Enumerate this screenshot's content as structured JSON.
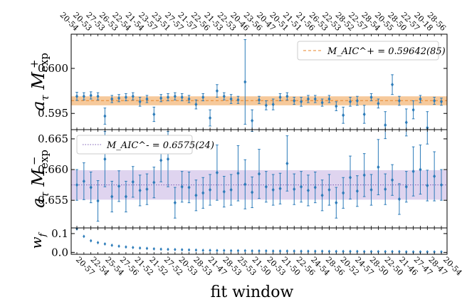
{
  "chart_data": [
    {
      "type": "scatter",
      "panel": "top",
      "ylabel_main": "a",
      "ylabel_sub": "τ",
      "ylabel_var": "M",
      "ylabel_varsub": "exp",
      "ylabel_varsup": "+",
      "yticks": [
        0.595,
        0.6
      ],
      "yticklabels": [
        "0.595",
        "0.600"
      ],
      "ylim": [
        0.5932,
        0.6038
      ],
      "top_tick_labels": [
        "20-54",
        "20-53",
        "27-53",
        "26-53",
        "22-54",
        "21-54",
        "23-57",
        "23-51",
        "27-57",
        "21-57",
        "22-56",
        "21-53",
        "22-53",
        "20-46",
        "23-56",
        "20-47",
        "20-51",
        "21-51",
        "21-56",
        "26-53",
        "22-53",
        "28-52",
        "22-57",
        "28-54",
        "20-55",
        "28-50",
        "22-57",
        "20-18",
        "28-56"
      ],
      "band_color": "#f4c08a",
      "band_range": [
        0.5959,
        0.5969
      ],
      "central_line": 0.59642,
      "central_line_color": "#e8852a",
      "legend": "M_AIC^+ = 0.59642(85)",
      "legend_placement": "top-right",
      "marker_color": "#2b7bb9",
      "points": [
        {
          "y": 0.5969,
          "err": 0.00045
        },
        {
          "y": 0.5969,
          "err": 0.0004
        },
        {
          "y": 0.597,
          "err": 0.0004
        },
        {
          "y": 0.5969,
          "err": 0.0004
        },
        {
          "y": 0.5947,
          "err": 0.0009
        },
        {
          "y": 0.5966,
          "err": 0.0004
        },
        {
          "y": 0.5967,
          "err": 0.0004
        },
        {
          "y": 0.5968,
          "err": 0.0004
        },
        {
          "y": 0.5969,
          "err": 0.0004
        },
        {
          "y": 0.5963,
          "err": 0.0005
        },
        {
          "y": 0.5966,
          "err": 0.0004
        },
        {
          "y": 0.5949,
          "err": 0.0008
        },
        {
          "y": 0.5967,
          "err": 0.0004
        },
        {
          "y": 0.5968,
          "err": 0.0004
        },
        {
          "y": 0.5969,
          "err": 0.0004
        },
        {
          "y": 0.5968,
          "err": 0.0004
        },
        {
          "y": 0.5966,
          "err": 0.0004
        },
        {
          "y": 0.596,
          "err": 0.0005
        },
        {
          "y": 0.5968,
          "err": 0.0004
        },
        {
          "y": 0.5945,
          "err": 0.0009
        },
        {
          "y": 0.5975,
          "err": 0.0007
        },
        {
          "y": 0.5969,
          "err": 0.0004
        },
        {
          "y": 0.5966,
          "err": 0.0005
        },
        {
          "y": 0.5965,
          "err": 0.0004
        },
        {
          "y": 0.5985,
          "err": 0.0047
        },
        {
          "y": 0.5942,
          "err": 0.0012
        },
        {
          "y": 0.5965,
          "err": 0.0004
        },
        {
          "y": 0.5959,
          "err": 0.0005
        },
        {
          "y": 0.596,
          "err": 0.0006
        },
        {
          "y": 0.5968,
          "err": 0.0004
        },
        {
          "y": 0.5969,
          "err": 0.0004
        },
        {
          "y": 0.5964,
          "err": 0.0004
        },
        {
          "y": 0.5963,
          "err": 0.0005
        },
        {
          "y": 0.5966,
          "err": 0.0004
        },
        {
          "y": 0.5966,
          "err": 0.0004
        },
        {
          "y": 0.5962,
          "err": 0.0004
        },
        {
          "y": 0.5966,
          "err": 0.0004
        },
        {
          "y": 0.5958,
          "err": 0.0005
        },
        {
          "y": 0.5948,
          "err": 0.0009
        },
        {
          "y": 0.5963,
          "err": 0.0005
        },
        {
          "y": 0.5964,
          "err": 0.0005
        },
        {
          "y": 0.5949,
          "err": 0.001
        },
        {
          "y": 0.5968,
          "err": 0.0004
        },
        {
          "y": 0.5961,
          "err": 0.0005
        },
        {
          "y": 0.5937,
          "err": 0.0015
        },
        {
          "y": 0.5982,
          "err": 0.0011
        },
        {
          "y": 0.5964,
          "err": 0.0005
        },
        {
          "y": 0.594,
          "err": 0.0015
        },
        {
          "y": 0.5954,
          "err": 0.001
        },
        {
          "y": 0.5966,
          "err": 0.0004
        },
        {
          "y": 0.5934,
          "err": 0.0018
        },
        {
          "y": 0.5964,
          "err": 0.0004
        },
        {
          "y": 0.5963,
          "err": 0.0004
        }
      ]
    },
    {
      "type": "scatter",
      "panel": "middle",
      "ylabel_main": "a",
      "ylabel_sub": "τ",
      "ylabel_var": "M",
      "ylabel_varsub": "exp",
      "ylabel_varsup": "−",
      "yticks": [
        0.655,
        0.66,
        0.665
      ],
      "yticklabels": [
        "0.655",
        "0.660",
        "0.665"
      ],
      "ylim": [
        0.6505,
        0.6665
      ],
      "band_color": "#d9ccec",
      "band_range": [
        0.6551,
        0.6599
      ],
      "central_line": 0.6575,
      "central_line_color": "#7c5cb4",
      "legend": "M_AIC^- = 0.6575(24)",
      "legend_placement": "top-left",
      "marker_color": "#2b7bb9",
      "points": [
        {
          "y": 0.6575,
          "err": 0.0025
        },
        {
          "y": 0.6581,
          "err": 0.003
        },
        {
          "y": 0.6571,
          "err": 0.0025
        },
        {
          "y": 0.6549,
          "err": 0.0033
        },
        {
          "y": 0.6617,
          "err": 0.0045
        },
        {
          "y": 0.6556,
          "err": 0.0025
        },
        {
          "y": 0.6573,
          "err": 0.0025
        },
        {
          "y": 0.6556,
          "err": 0.0025
        },
        {
          "y": 0.658,
          "err": 0.0025
        },
        {
          "y": 0.6566,
          "err": 0.0025
        },
        {
          "y": 0.6568,
          "err": 0.0025
        },
        {
          "y": 0.6579,
          "err": 0.0025
        },
        {
          "y": 0.6615,
          "err": 0.0035
        },
        {
          "y": 0.6617,
          "err": 0.0045
        },
        {
          "y": 0.6546,
          "err": 0.0025
        },
        {
          "y": 0.6572,
          "err": 0.0025
        },
        {
          "y": 0.6571,
          "err": 0.0025
        },
        {
          "y": 0.6558,
          "err": 0.0025
        },
        {
          "y": 0.6562,
          "err": 0.0025
        },
        {
          "y": 0.6567,
          "err": 0.0025
        },
        {
          "y": 0.6595,
          "err": 0.0045
        },
        {
          "y": 0.6564,
          "err": 0.0025
        },
        {
          "y": 0.6567,
          "err": 0.0025
        },
        {
          "y": 0.6594,
          "err": 0.0045
        },
        {
          "y": 0.6576,
          "err": 0.004
        },
        {
          "y": 0.6563,
          "err": 0.0025
        },
        {
          "y": 0.6593,
          "err": 0.004
        },
        {
          "y": 0.6572,
          "err": 0.0025
        },
        {
          "y": 0.6567,
          "err": 0.0025
        },
        {
          "y": 0.6569,
          "err": 0.0025
        },
        {
          "y": 0.661,
          "err": 0.0045
        },
        {
          "y": 0.6568,
          "err": 0.0025
        },
        {
          "y": 0.6572,
          "err": 0.0025
        },
        {
          "y": 0.6566,
          "err": 0.0025
        },
        {
          "y": 0.6571,
          "err": 0.0025
        },
        {
          "y": 0.6558,
          "err": 0.0025
        },
        {
          "y": 0.6567,
          "err": 0.0025
        },
        {
          "y": 0.6546,
          "err": 0.0025
        },
        {
          "y": 0.6562,
          "err": 0.0025
        },
        {
          "y": 0.6587,
          "err": 0.0035
        },
        {
          "y": 0.6565,
          "err": 0.0025
        },
        {
          "y": 0.6591,
          "err": 0.0035
        },
        {
          "y": 0.6567,
          "err": 0.0025
        },
        {
          "y": 0.6604,
          "err": 0.0045
        },
        {
          "y": 0.6568,
          "err": 0.0025
        },
        {
          "y": 0.6583,
          "err": 0.0025
        },
        {
          "y": 0.6552,
          "err": 0.0025
        },
        {
          "y": 0.6572,
          "err": 0.0025
        },
        {
          "y": 0.6597,
          "err": 0.004
        },
        {
          "y": 0.66,
          "err": 0.004
        },
        {
          "y": 0.6574,
          "err": 0.0025
        },
        {
          "y": 0.6589,
          "err": 0.004
        },
        {
          "y": 0.6575,
          "err": 0.0025
        }
      ]
    },
    {
      "type": "scatter",
      "panel": "bottom",
      "ylabel_main": "w",
      "ylabel_sub": "f",
      "yticks": [
        0.0,
        0.1
      ],
      "yticklabels": [
        "0.0",
        "0.1"
      ],
      "ylim": [
        -0.01,
        0.13
      ],
      "xlabel": "fit window",
      "bottom_tick_labels": [
        "20-57",
        "22-54",
        "25-54",
        "27-56",
        "21-52",
        "21-52",
        "27-52",
        "20-53",
        "28-53",
        "21-47",
        "28-53",
        "25-53",
        "21-50",
        "20-53",
        "21-50",
        "22-56",
        "24-54",
        "28-56",
        "20-52",
        "24-57",
        "28-50",
        "22-50",
        "21-46",
        "27-47",
        "28-47",
        "20-54"
      ],
      "marker_color": "#2b7bb9",
      "values": [
        0.125,
        0.085,
        0.062,
        0.052,
        0.045,
        0.038,
        0.033,
        0.029,
        0.026,
        0.023,
        0.021,
        0.019,
        0.017,
        0.016,
        0.015,
        0.014,
        0.013,
        0.012,
        0.011,
        0.011,
        0.01,
        0.01,
        0.009,
        0.009,
        0.009,
        0.008,
        0.008,
        0.008,
        0.007,
        0.007,
        0.007,
        0.007,
        0.006,
        0.006,
        0.006,
        0.006,
        0.005,
        0.005,
        0.005,
        0.005,
        0.005,
        0.004,
        0.004,
        0.004,
        0.004,
        0.004,
        0.004,
        0.003,
        0.003,
        0.003,
        0.003,
        0.003,
        0.003
      ]
    }
  ]
}
